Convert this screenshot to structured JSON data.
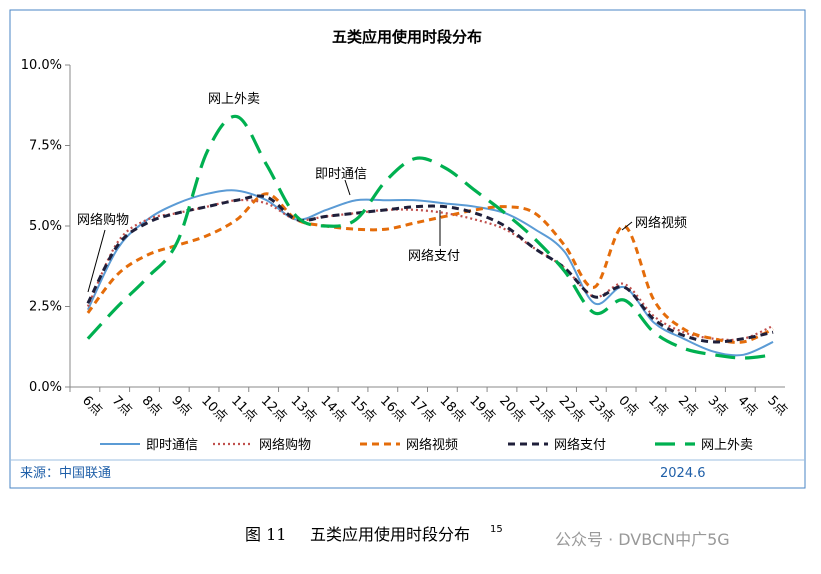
{
  "chart_data": {
    "type": "line",
    "title": "五类应用使用时段分布",
    "categories": [
      "6点",
      "7点",
      "8点",
      "9点",
      "10点",
      "11点",
      "12点",
      "13点",
      "14点",
      "15点",
      "16点",
      "17点",
      "18点",
      "19点",
      "20点",
      "21点",
      "22点",
      "23点",
      "0点",
      "1点",
      "2点",
      "3点",
      "4点",
      "5点"
    ],
    "series": [
      {
        "name": "即时通信",
        "color": "#5b9bd5",
        "dash": "solid",
        "values": [
          2.4,
          4.3,
          5.2,
          5.7,
          6.0,
          6.1,
          5.8,
          5.2,
          5.5,
          5.8,
          5.8,
          5.8,
          5.7,
          5.6,
          5.4,
          4.9,
          4.2,
          2.6,
          3.1,
          2.0,
          1.5,
          1.1,
          1.0,
          1.4
        ]
      },
      {
        "name": "网络购物",
        "color": "#c0504d",
        "dash": "dotted",
        "values": [
          2.5,
          4.5,
          5.2,
          5.4,
          5.6,
          5.8,
          5.7,
          5.2,
          5.3,
          5.4,
          5.5,
          5.5,
          5.4,
          5.2,
          4.9,
          4.3,
          3.7,
          2.8,
          3.2,
          2.2,
          1.7,
          1.5,
          1.5,
          1.9
        ]
      },
      {
        "name": "网络视频",
        "color": "#e46c0a",
        "dash": "dashed",
        "values": [
          2.3,
          3.5,
          4.1,
          4.4,
          4.7,
          5.2,
          6.0,
          5.2,
          5.0,
          4.9,
          4.9,
          5.1,
          5.3,
          5.5,
          5.6,
          5.4,
          4.4,
          3.1,
          5.0,
          2.7,
          1.8,
          1.5,
          1.4,
          1.8
        ]
      },
      {
        "name": "网络支付",
        "color": "#1f1f3a",
        "dash": "dashed",
        "values": [
          2.6,
          4.4,
          5.1,
          5.4,
          5.6,
          5.8,
          5.9,
          5.2,
          5.3,
          5.4,
          5.5,
          5.6,
          5.6,
          5.4,
          5.0,
          4.3,
          3.7,
          2.8,
          3.1,
          2.1,
          1.6,
          1.4,
          1.5,
          1.7
        ]
      },
      {
        "name": "网上外卖",
        "color": "#00b050",
        "dash": "longdash",
        "values": [
          1.5,
          2.5,
          3.4,
          4.5,
          7.3,
          8.4,
          6.9,
          5.3,
          5.0,
          5.2,
          6.4,
          7.1,
          6.8,
          6.1,
          5.4,
          4.6,
          3.6,
          2.3,
          2.7,
          1.7,
          1.2,
          1.0,
          0.9,
          1.0
        ]
      }
    ],
    "ylim": [
      0,
      10
    ],
    "yticks": [
      {
        "value": 0,
        "label": "0.0%"
      },
      {
        "value": 2.5,
        "label": "2.5%"
      },
      {
        "value": 5,
        "label": "5.0%"
      },
      {
        "value": 7.5,
        "label": "7.5%"
      },
      {
        "value": 10,
        "label": "10.0%"
      }
    ],
    "annotations": [
      "网上外卖",
      "即时通信",
      "网络购物",
      "网络视频",
      "网络支付"
    ],
    "source": "来源：中国联通",
    "date": "2024.6"
  },
  "caption": {
    "label": "图 11",
    "text": "五类应用使用时段分布",
    "footnote": "15"
  },
  "watermark": "公众号 · DVBCN中广5G"
}
